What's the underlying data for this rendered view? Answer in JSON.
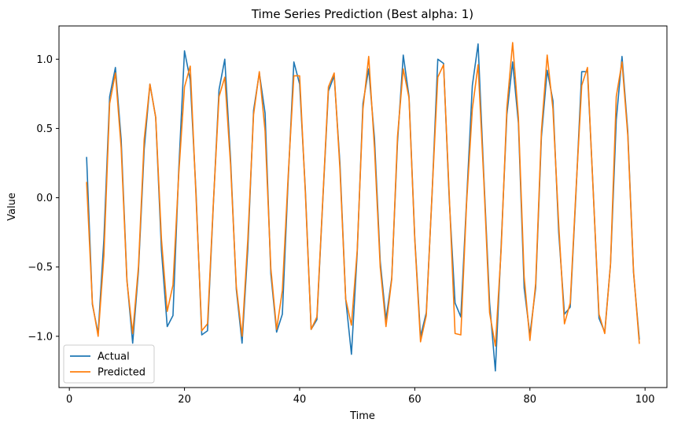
{
  "chart_data": {
    "type": "line",
    "title": "Time Series Prediction (Best alpha: 1)",
    "xlabel": "Time",
    "ylabel": "Value",
    "xlim": [
      -1.8,
      103.8
    ],
    "ylim": [
      -1.37,
      1.24
    ],
    "xticks": [
      0,
      20,
      40,
      60,
      80,
      100
    ],
    "xtick_labels": [
      "0",
      "20",
      "40",
      "60",
      "80",
      "100"
    ],
    "yticks": [
      -1.0,
      -0.5,
      0.0,
      0.5,
      1.0
    ],
    "ytick_labels": [
      "−1.0",
      "−0.5",
      "0.0",
      "0.5",
      "1.0"
    ],
    "grid": false,
    "legend_position": "lower-left",
    "x": [
      3,
      4,
      5,
      6,
      7,
      8,
      9,
      10,
      11,
      12,
      13,
      14,
      15,
      16,
      17,
      18,
      19,
      20,
      21,
      22,
      23,
      24,
      25,
      26,
      27,
      28,
      29,
      30,
      31,
      32,
      33,
      34,
      35,
      36,
      37,
      38,
      39,
      40,
      41,
      42,
      43,
      44,
      45,
      46,
      47,
      48,
      49,
      50,
      51,
      52,
      53,
      54,
      55,
      56,
      57,
      58,
      59,
      60,
      61,
      62,
      63,
      64,
      65,
      66,
      67,
      68,
      69,
      70,
      71,
      72,
      73,
      74,
      75,
      76,
      77,
      78,
      79,
      80,
      81,
      82,
      83,
      84,
      85,
      86,
      87,
      88,
      89,
      90,
      91,
      92,
      93,
      94,
      95,
      96,
      97,
      98,
      99
    ],
    "series": [
      {
        "name": "Actual",
        "color": "#1f77b4",
        "values": [
          0.29,
          -0.77,
          -0.98,
          -0.3,
          0.73,
          0.94,
          0.42,
          -0.59,
          -1.05,
          -0.53,
          0.35,
          0.82,
          0.58,
          -0.38,
          -0.93,
          -0.85,
          0.2,
          1.06,
          0.85,
          0.04,
          -0.99,
          -0.96,
          -0.06,
          0.78,
          1.0,
          0.28,
          -0.66,
          -1.05,
          -0.37,
          0.63,
          0.9,
          0.61,
          -0.55,
          -0.97,
          -0.84,
          0.12,
          0.98,
          0.82,
          0.05,
          -0.95,
          -0.88,
          -0.04,
          0.77,
          0.88,
          0.25,
          -0.73,
          -1.13,
          -0.4,
          0.68,
          0.93,
          0.43,
          -0.46,
          -0.88,
          -0.58,
          0.4,
          1.03,
          0.73,
          -0.29,
          -1.0,
          -0.83,
          0.02,
          1.0,
          0.97,
          -0.02,
          -0.76,
          -0.86,
          -0.02,
          0.81,
          1.11,
          0.15,
          -0.76,
          -1.25,
          -0.35,
          0.6,
          0.98,
          0.54,
          -0.65,
          -0.99,
          -0.65,
          0.44,
          0.92,
          0.7,
          -0.25,
          -0.84,
          -0.79,
          0.03,
          0.91,
          0.91,
          0.05,
          -0.87,
          -0.97,
          -0.48,
          0.56,
          1.02,
          0.48,
          -0.54,
          -1.02
        ]
      },
      {
        "name": "Predicted",
        "color": "#ff7f0e",
        "values": [
          0.11,
          -0.76,
          -1.0,
          -0.42,
          0.68,
          0.9,
          0.36,
          -0.6,
          -0.98,
          -0.5,
          0.42,
          0.82,
          0.58,
          -0.3,
          -0.82,
          -0.63,
          0.17,
          0.8,
          0.95,
          0.01,
          -0.96,
          -0.91,
          -0.05,
          0.73,
          0.87,
          0.24,
          -0.64,
          -1.0,
          -0.3,
          0.6,
          0.91,
          0.48,
          -0.51,
          -0.95,
          -0.67,
          0.15,
          0.88,
          0.88,
          0.03,
          -0.95,
          -0.86,
          -0.03,
          0.8,
          0.9,
          0.21,
          -0.73,
          -0.92,
          -0.38,
          0.64,
          1.02,
          0.36,
          -0.5,
          -0.93,
          -0.59,
          0.44,
          0.93,
          0.72,
          -0.3,
          -1.04,
          -0.85,
          0.03,
          0.87,
          0.96,
          0.01,
          -0.98,
          -0.99,
          -0.04,
          0.64,
          0.96,
          0.12,
          -0.83,
          -1.07,
          -0.38,
          0.65,
          1.12,
          0.58,
          -0.57,
          -1.03,
          -0.62,
          0.48,
          1.03,
          0.64,
          -0.19,
          -0.91,
          -0.76,
          0.05,
          0.81,
          0.94,
          0.04,
          -0.84,
          -0.98,
          -0.48,
          0.73,
          0.98,
          0.45,
          -0.53,
          -1.05
        ]
      }
    ]
  }
}
